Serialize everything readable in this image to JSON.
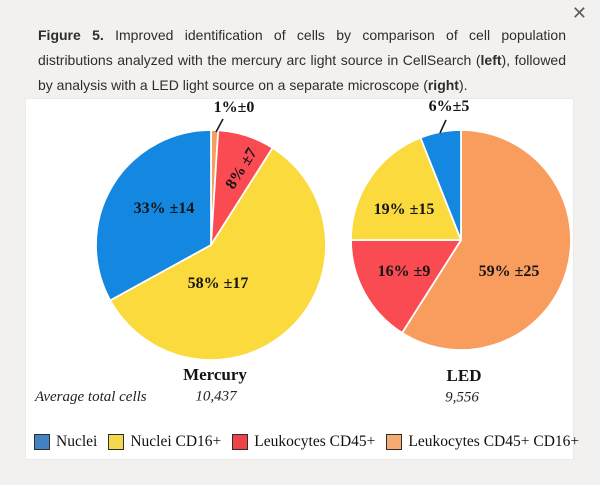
{
  "window": {
    "close_glyph": "✕"
  },
  "caption": {
    "segments": [
      {
        "text": "Figure 5.",
        "bold": true
      },
      {
        "text": " Improved identification of cells by comparison of cell population distributions analyzed with the mercury arc light source in CellSearch (",
        "bold": false
      },
      {
        "text": "left",
        "bold": true
      },
      {
        "text": "), followed by analysis with a LED light source on a separate microscope (",
        "bold": false
      },
      {
        "text": "right",
        "bold": true
      },
      {
        "text": ").",
        "bold": false
      }
    ]
  },
  "colors": {
    "blue": "#1487e0",
    "yellow": "#fbda3d",
    "red": "#fa4a52",
    "orange": "#f99d5e",
    "legend_blue": "#4283c4",
    "legend_yellow": "#f3d850",
    "legend_red": "#ef4348",
    "legend_orange": "#f5ab72",
    "callout": "#1a1a1a"
  },
  "average_total_cells_label": "Average total cells",
  "chart_data": [
    {
      "type": "pie",
      "title": "Mercury",
      "average_total_cells": "10,437",
      "start_angle_deg_from_top": 0,
      "direction": "clockwise",
      "slices": [
        {
          "label": "Leukocytes CD45+ CD16+",
          "value": 1,
          "sd": 0,
          "display": "1%±0",
          "color_key": "orange"
        },
        {
          "label": "Leukocytes CD45+",
          "value": 8,
          "sd": 7,
          "display": "8% ±7",
          "color_key": "red"
        },
        {
          "label": "Nuclei CD16+",
          "value": 58,
          "sd": 17,
          "display": "58% ±17",
          "color_key": "yellow"
        },
        {
          "label": "Nuclei",
          "value": 33,
          "sd": 14,
          "display": "33% ±14",
          "color_key": "blue"
        }
      ]
    },
    {
      "type": "pie",
      "title": "LED",
      "average_total_cells": "9,556",
      "start_angle_deg_from_top": 0,
      "direction": "clockwise",
      "slices": [
        {
          "label": "Leukocytes CD45+ CD16+",
          "value": 59,
          "sd": 25,
          "display": "59% ±25",
          "color_key": "orange"
        },
        {
          "label": "Leukocytes CD45+",
          "value": 16,
          "sd": 9,
          "display": "16% ±9",
          "color_key": "red"
        },
        {
          "label": "Nuclei CD16+",
          "value": 19,
          "sd": 15,
          "display": "19% ±15",
          "color_key": "yellow"
        },
        {
          "label": "Nuclei",
          "value": 6,
          "sd": 5,
          "display": "6%±5",
          "color_key": "blue"
        }
      ]
    }
  ],
  "legend": [
    {
      "label": "Nuclei",
      "color_key": "legend_blue"
    },
    {
      "label": "Nuclei CD16+",
      "color_key": "legend_yellow"
    },
    {
      "label": "Leukocytes CD45+",
      "color_key": "legend_red"
    },
    {
      "label": "Leukocytes CD45+ CD16+",
      "color_key": "legend_orange"
    }
  ]
}
